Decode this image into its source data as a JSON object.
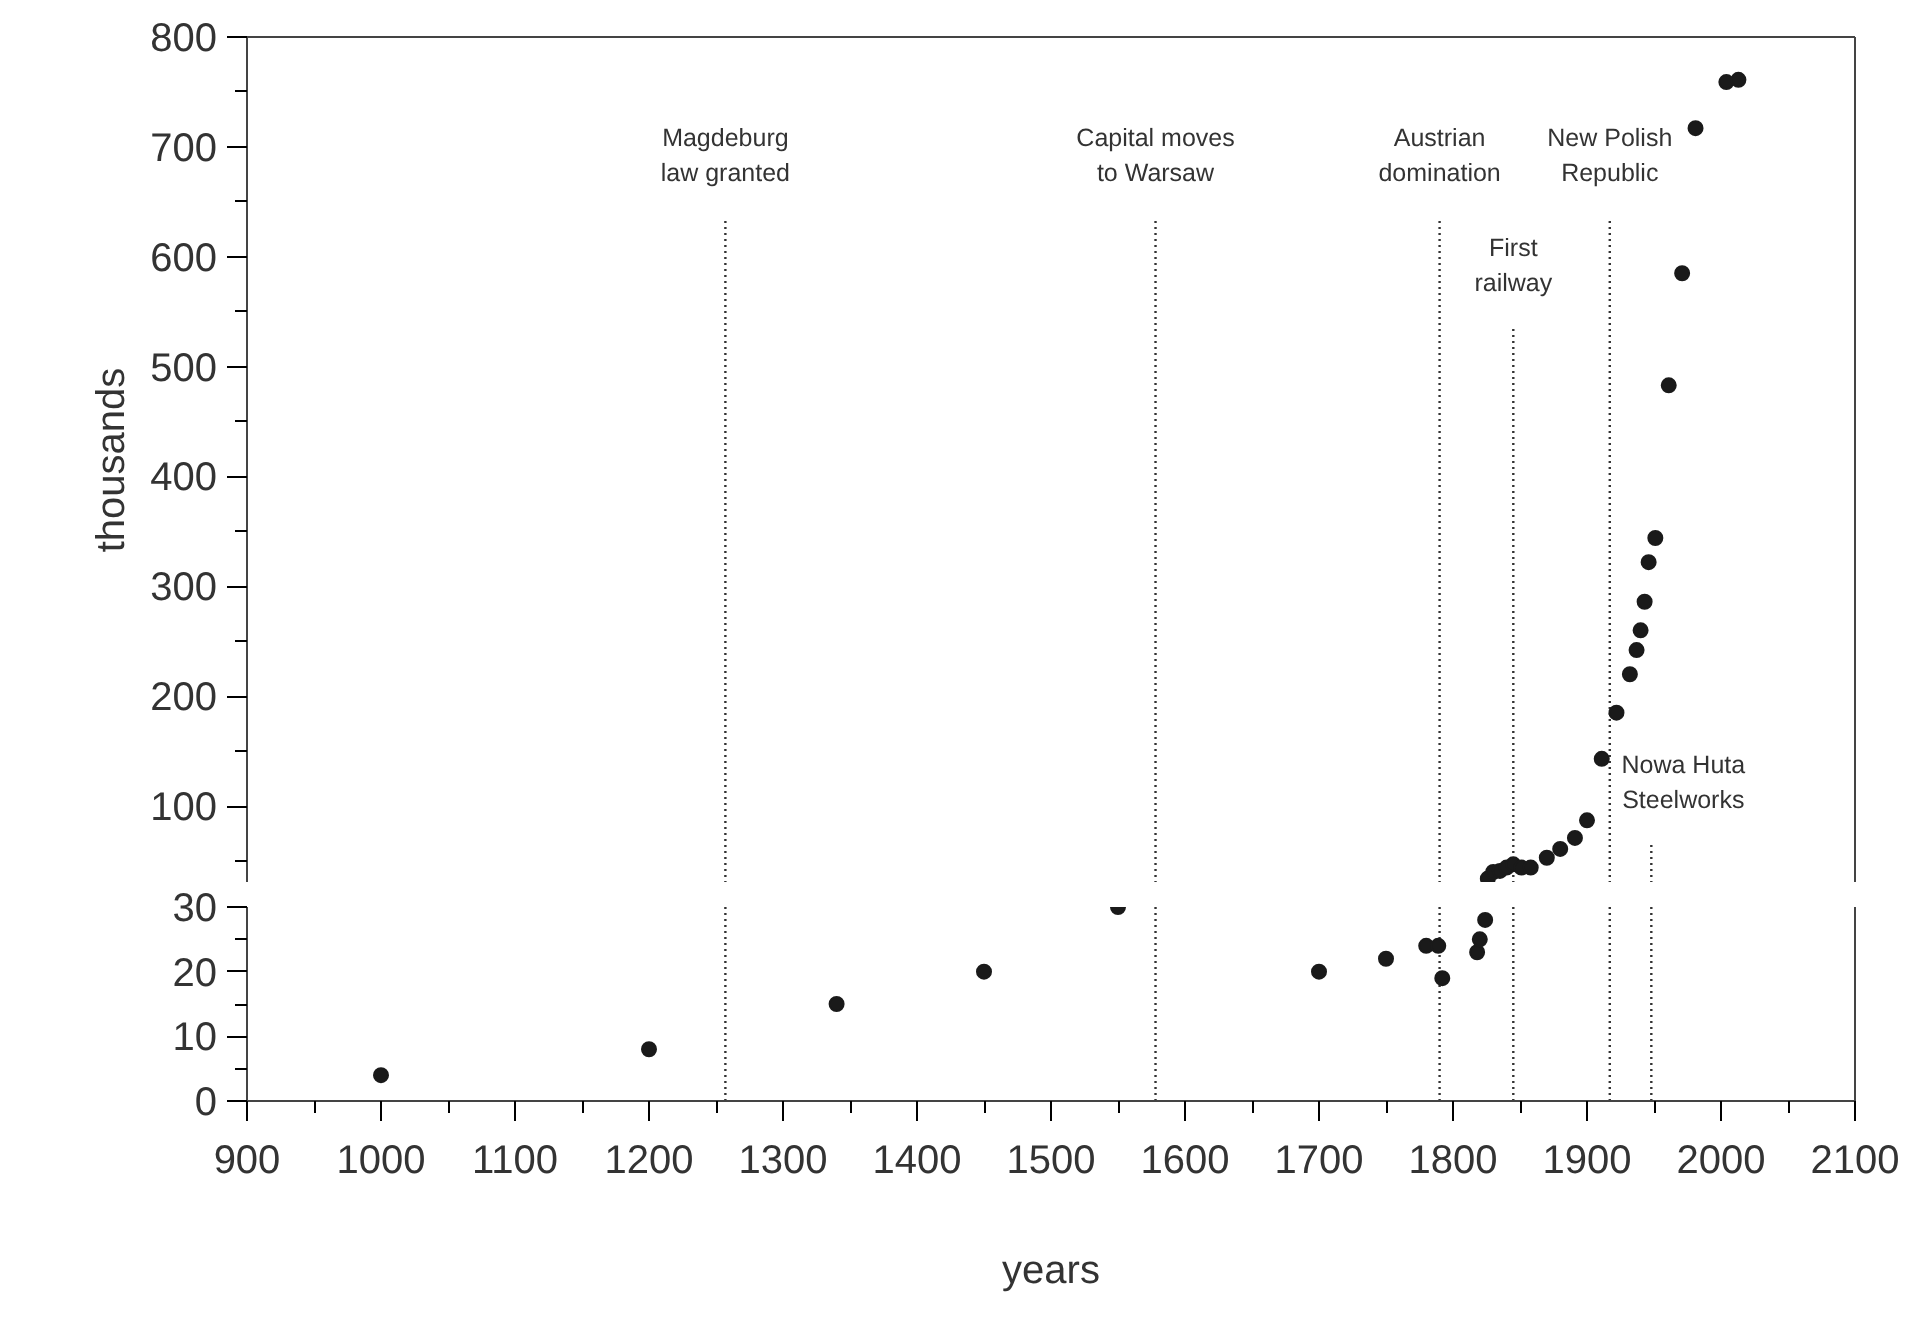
{
  "chart_data": [
    {
      "type": "scatter",
      "ylabel": "thousands",
      "x": [
        1826,
        1830,
        1835,
        1840,
        1845,
        1851,
        1858,
        1870,
        1880,
        1891,
        1900,
        1911,
        1922,
        1932,
        1937,
        1940,
        1943,
        1946,
        1951,
        1961,
        1971,
        1981,
        2004,
        2013
      ],
      "series": [
        {
          "color": "#1a1a1a",
          "values": [
            34,
            40,
            41,
            44,
            47,
            44,
            44,
            53,
            61,
            71,
            87,
            143,
            185,
            220,
            242,
            260,
            286,
            322,
            344,
            483,
            585,
            717,
            759,
            761
          ]
        }
      ],
      "xlim": [
        900,
        2100
      ],
      "ylim": [
        30,
        800
      ],
      "yticks": [
        100,
        200,
        300,
        400,
        500,
        600,
        700,
        800
      ],
      "ref_lines": [
        {
          "axis": "x",
          "value": 1257,
          "label": "Magdeburg\nlaw granted",
          "line_style": "dotted"
        },
        {
          "axis": "x",
          "value": 1578,
          "label": "Capital moves\nto Warsaw",
          "line_style": "dotted"
        },
        {
          "axis": "x",
          "value": 1790,
          "label": "Austrian\ndomination",
          "line_style": "dotted"
        },
        {
          "axis": "x",
          "value": 1845,
          "label": "First\nrailway",
          "line_style": "dotted"
        },
        {
          "axis": "x",
          "value": 1917,
          "label": "New Polish\nRepublic",
          "line_style": "dotted"
        },
        {
          "axis": "x",
          "value": 1948,
          "label": "Nowa Huta\nSteelworks",
          "line_style": "dotted"
        }
      ],
      "tick_labels": "y",
      "marker": "circle"
    },
    {
      "type": "scatter",
      "xlabel": "years",
      "x": [
        1000,
        1200,
        1340,
        1450,
        1550,
        1700,
        1750,
        1780,
        1789,
        1792,
        1818,
        1820,
        1824
      ],
      "series": [
        {
          "color": "#1a1a1a",
          "values": [
            4,
            8,
            15,
            20,
            30,
            20,
            22,
            24,
            24,
            19,
            23,
            25,
            28
          ]
        }
      ],
      "xlim": [
        900,
        2100
      ],
      "xticks": [
        900,
        1000,
        1100,
        1200,
        1300,
        1400,
        1500,
        1600,
        1700,
        1800,
        1900,
        2000,
        2100
      ],
      "ylim": [
        0,
        30
      ],
      "yticks": [
        0,
        10,
        20,
        30
      ],
      "ref_lines": [
        {
          "axis": "x",
          "value": 1257,
          "line_style": "dotted"
        },
        {
          "axis": "x",
          "value": 1578,
          "line_style": "dotted"
        },
        {
          "axis": "x",
          "value": 1790,
          "line_style": "dotted"
        },
        {
          "axis": "x",
          "value": 1845,
          "line_style": "dotted"
        },
        {
          "axis": "x",
          "value": 1917,
          "line_style": "dotted"
        },
        {
          "axis": "x",
          "value": 1948,
          "line_style": "dotted"
        }
      ],
      "marker": "circle"
    }
  ]
}
